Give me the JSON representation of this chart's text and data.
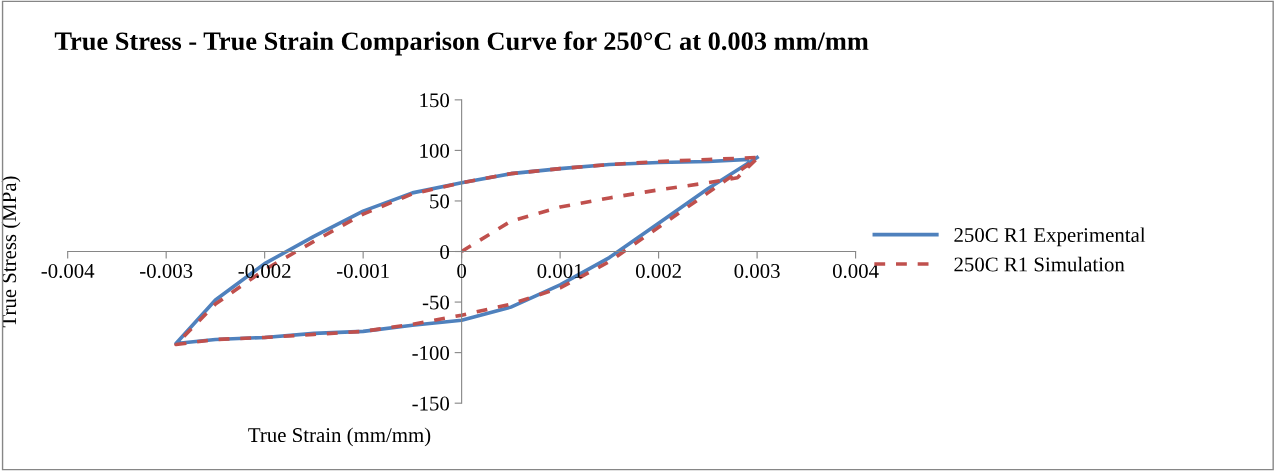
{
  "chart_data": {
    "type": "line",
    "title": "True Stress - True Strain Comparison Curve for 250°C at 0.003 mm/mm",
    "xlabel": "True Strain (mm/mm)",
    "ylabel": "True Stress (MPa)",
    "xlim": [
      -0.004,
      0.004
    ],
    "xticks": [
      -0.004,
      -0.003,
      -0.002,
      -0.001,
      0,
      0.001,
      0.002,
      0.003,
      0.004
    ],
    "ylim": [
      -150,
      150
    ],
    "yticks": [
      -150,
      -100,
      -50,
      0,
      50,
      100,
      150
    ],
    "legend": "right",
    "series": [
      {
        "name": "250C R1 Experimental",
        "color": "#4f81bd",
        "line_style": "solid",
        "x": [
          0.003,
          0.0025,
          0.002,
          0.0015,
          0.001,
          0.0005,
          0,
          -0.0005,
          -0.001,
          -0.0015,
          -0.002,
          -0.0025,
          -0.0029,
          -0.0025,
          -0.002,
          -0.0015,
          -0.001,
          -0.0005,
          0,
          0.0005,
          0.001,
          0.0015,
          0.002,
          0.0025,
          0.0029
        ],
        "values": [
          93,
          62,
          28,
          -6,
          -33,
          -55,
          -68,
          -73,
          -79,
          -81,
          -85,
          -87,
          -91,
          -48,
          -12,
          15,
          40,
          58,
          68,
          77,
          82,
          86,
          88,
          89,
          91
        ]
      },
      {
        "name": "250C R1 Simulation",
        "color": "#c0504d",
        "line_style": "dashed",
        "x": [
          0,
          0.0005,
          0.001,
          0.0015,
          0.002,
          0.0025,
          0.0028,
          0.003,
          0.0025,
          0.002,
          0.0015,
          0.001,
          0.0005,
          0,
          -0.0005,
          -0.001,
          -0.0015,
          -0.002,
          -0.0025,
          -0.0029,
          -0.0025,
          -0.002,
          -0.0015,
          -0.001,
          -0.0005,
          0,
          0.0005,
          0.001,
          0.0015,
          0.002,
          0.0025,
          0.003
        ],
        "values": [
          0,
          30,
          44,
          53,
          61,
          68,
          73,
          92,
          58,
          24,
          -10,
          -36,
          -52,
          -63,
          -72,
          -79,
          -82,
          -85,
          -87,
          -92,
          -52,
          -18,
          10,
          37,
          57,
          68,
          77,
          82,
          86,
          89,
          91,
          93
        ]
      }
    ]
  }
}
